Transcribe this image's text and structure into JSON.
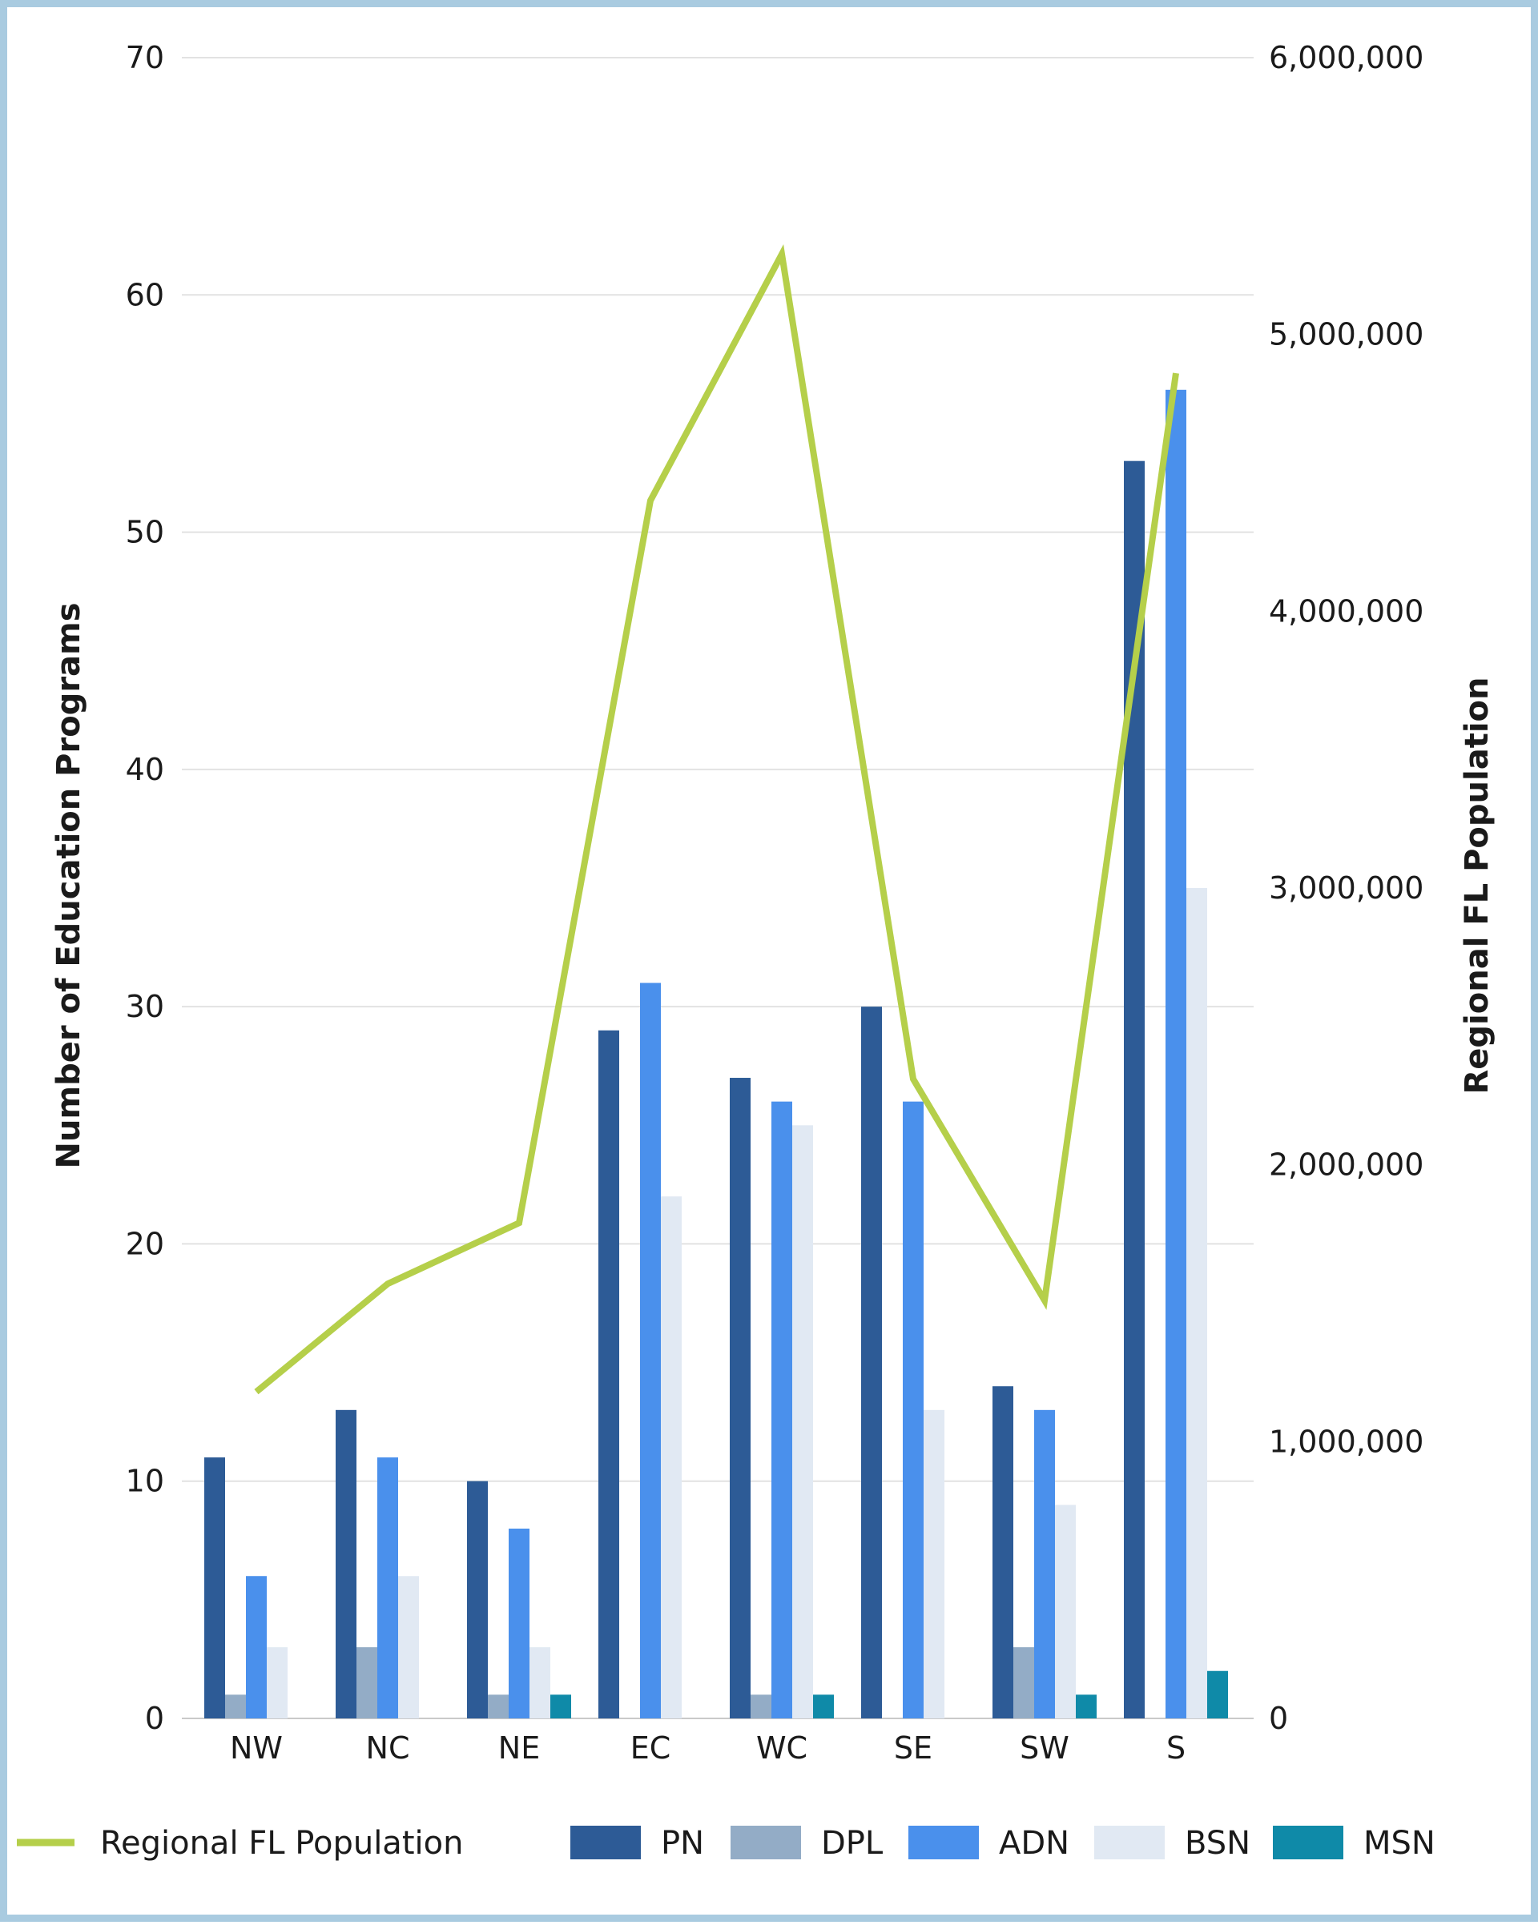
{
  "chart_data": {
    "type": "bar",
    "categories": [
      "NW",
      "NC",
      "NE",
      "EC",
      "WC",
      "SE",
      "SW",
      "S"
    ],
    "series": [
      {
        "name": "PN",
        "color": "#2d5b96",
        "values": [
          11,
          13,
          10,
          29,
          27,
          30,
          14,
          53
        ]
      },
      {
        "name": "DPL",
        "color": "#93acc6",
        "values": [
          1,
          3,
          1,
          0,
          1,
          0,
          3,
          0
        ]
      },
      {
        "name": "ADN",
        "color": "#4a90ec",
        "values": [
          6,
          11,
          8,
          31,
          26,
          26,
          13,
          56
        ]
      },
      {
        "name": "BSN",
        "color": "#e1e9f3",
        "values": [
          3,
          6,
          3,
          22,
          25,
          13,
          9,
          35
        ]
      },
      {
        "name": "MSN",
        "color": "#0f8aa8",
        "values": [
          0,
          0,
          1,
          0,
          1,
          0,
          1,
          2
        ]
      }
    ],
    "line_series": {
      "name": "Regional FL Population",
      "color": "#b5cf4a",
      "axis": "right",
      "values": [
        1180000,
        1570000,
        1790000,
        4400000,
        5290000,
        2310000,
        1510000,
        4860000
      ]
    },
    "ylabel": "Number of Education Programs",
    "y2label": "Regional FL Population",
    "ylim": [
      0,
      70
    ],
    "y2lim": [
      0,
      6000000
    ],
    "yticks": [
      "0",
      "10",
      "20",
      "30",
      "40",
      "50",
      "60",
      "70"
    ],
    "y2ticks": [
      "0",
      "1,000,000",
      "2,000,000",
      "3,000,000",
      "4,000,000",
      "5,000,000",
      "6,000,000"
    ],
    "grid": true,
    "legend_position": "bottom"
  }
}
